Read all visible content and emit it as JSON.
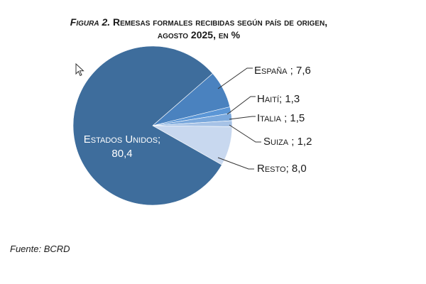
{
  "title": {
    "figure": "Figura 2.",
    "line1": "Remesas formales recibidas según país de origen,",
    "line2": "agosto 2025, en %"
  },
  "source": "Fuente: BCRD",
  "chart_data": {
    "type": "pie",
    "title": "Figura 2. Remesas formales recibidas según país de origen, agosto 2025, en %",
    "slices": [
      {
        "label": "Estados Unidos;",
        "value_label": "80,4",
        "value": 80.4,
        "color": "#3e6d9c"
      },
      {
        "label": "España ; 7,6",
        "value": 7.6,
        "color": "#4a82bf"
      },
      {
        "label": "Haití; 1,3",
        "value": 1.3,
        "color": "#5b96d6"
      },
      {
        "label": "Italia ; 1,5",
        "value": 1.5,
        "color": "#7aa8dc"
      },
      {
        "label": "Suiza ; 1,2",
        "value": 1.2,
        "color": "#a6c2e6"
      },
      {
        "label": "Resto; 8,0",
        "value": 8.0,
        "color": "#c8d8ef"
      }
    ]
  }
}
